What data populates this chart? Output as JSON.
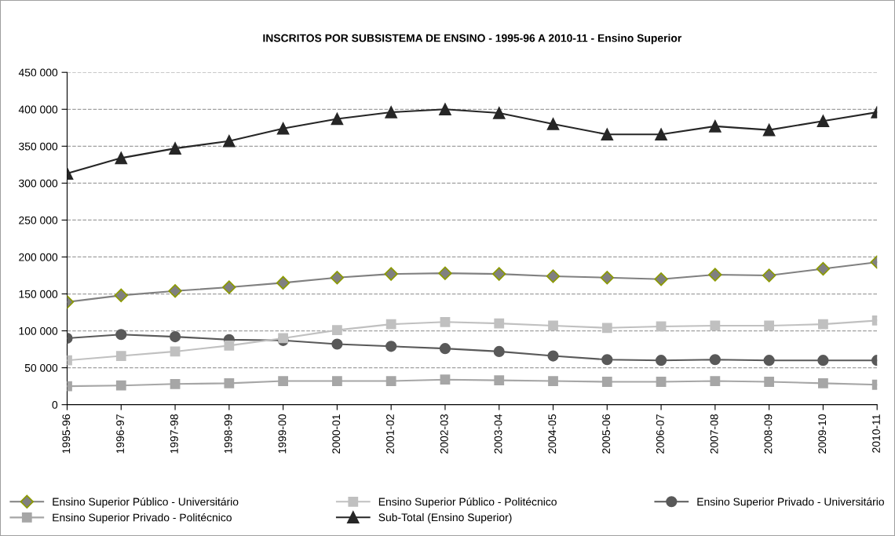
{
  "chart_data": {
    "type": "line",
    "title": "INSCRITOS POR SUBSISTEMA DE ENSINO - 1995-96 A 2010-11 - Ensino Superior",
    "categories": [
      "1995-96",
      "1996-97",
      "1997-98",
      "1998-99",
      "1999-00",
      "2000-01",
      "2001-02",
      "2002-03",
      "2003-04",
      "2004-05",
      "2005-06",
      "2006-07",
      "2007-08",
      "2008-09",
      "2009-10",
      "2010-11"
    ],
    "series": [
      {
        "name": "Ensino Superior Público - Universitário",
        "color": "#808080",
        "marker": "diamond",
        "values": [
          139000,
          148000,
          154000,
          159000,
          165000,
          172000,
          177000,
          178000,
          177000,
          174000,
          172000,
          170000,
          176000,
          175000,
          184000,
          193000
        ]
      },
      {
        "name": "Ensino Superior Público - Politécnico",
        "color": "#c0c0c0",
        "marker": "square",
        "values": [
          60000,
          66000,
          72000,
          80000,
          90000,
          101000,
          109000,
          112000,
          110000,
          107000,
          104000,
          106000,
          107000,
          107000,
          109000,
          114000
        ]
      },
      {
        "name": "Ensino Superior Privado - Universitário",
        "color": "#595959",
        "marker": "circle",
        "values": [
          90000,
          95000,
          92000,
          88000,
          87000,
          82000,
          79000,
          76000,
          72000,
          66000,
          61000,
          60000,
          61000,
          60000,
          60000,
          60000
        ]
      },
      {
        "name": "Ensino Superior Privado - Politécnico",
        "color": "#a6a6a6",
        "marker": "square",
        "values": [
          25000,
          26000,
          28000,
          29000,
          32000,
          32000,
          32000,
          34000,
          33000,
          32000,
          31000,
          31000,
          32000,
          31000,
          29000,
          27000
        ]
      },
      {
        "name": "Sub-Total (Ensino Superior)",
        "color": "#262626",
        "marker": "triangle",
        "values": [
          313000,
          334000,
          347000,
          357000,
          374000,
          387000,
          396000,
          400000,
          395000,
          380000,
          366000,
          366000,
          377000,
          372000,
          384000,
          396000
        ]
      }
    ],
    "ylim": [
      0,
      450000
    ],
    "yticks": [
      0,
      {
        "value": 50000,
        "label": "50 000"
      },
      {
        "value": 100000,
        "label": "100 000"
      },
      {
        "value": 150000,
        "label": "150 000"
      },
      {
        "value": 200000,
        "label": "200 000"
      },
      {
        "value": 250000,
        "label": "250 000"
      },
      {
        "value": 300000,
        "label": "300 000"
      },
      {
        "value": 350000,
        "label": "350 000"
      },
      {
        "value": 400000,
        "label": "400 000"
      },
      {
        "value": 450000,
        "label": "450 000"
      }
    ],
    "grid": "y",
    "line_style": "solid",
    "legend": "bottom"
  }
}
